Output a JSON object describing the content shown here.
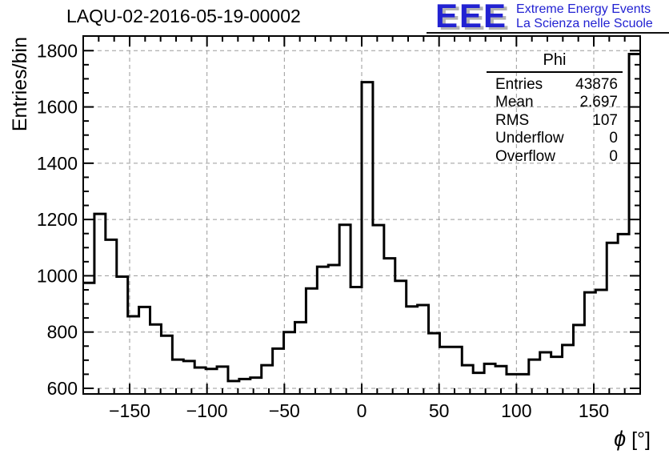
{
  "title": "LAQU-02-2016-05-19-00002",
  "logo": {
    "letters": "EEE",
    "line1": "Extreme Energy Events",
    "line2": "La Scienza nelle Scuole",
    "color": "#2222d2",
    "shadow_color": "#b3b3b3"
  },
  "stats": {
    "title": "Phi",
    "rows": [
      {
        "label": "Entries",
        "value": "43876"
      },
      {
        "label": "Mean",
        "value": "2.697"
      },
      {
        "label": "RMS",
        "value": "107"
      },
      {
        "label": "Underflow",
        "value": "0"
      },
      {
        "label": "Overflow",
        "value": "0"
      }
    ]
  },
  "chart_data": {
    "type": "bar",
    "subtype": "step-histogram",
    "title": "LAQU-02-2016-05-19-00002",
    "xlabel": "ϕ [°]",
    "xlabel_symbol": "ϕ",
    "xlabel_unit": " [°]",
    "ylabel": "Entries/bin",
    "x_range": [
      -180,
      180
    ],
    "bin_width_deg": 7.2,
    "n_bins": 50,
    "values": [
      975,
      1220,
      1128,
      997,
      856,
      889,
      827,
      787,
      702,
      697,
      674,
      669,
      677,
      626,
      633,
      638,
      682,
      741,
      800,
      835,
      955,
      1032,
      1038,
      1181,
      960,
      1688,
      1180,
      1062,
      982,
      891,
      896,
      796,
      747,
      747,
      682,
      655,
      687,
      679,
      650,
      650,
      702,
      728,
      712,
      754,
      825,
      941,
      950,
      1117,
      1148,
      1788
    ],
    "x_ticks_major": [
      -150,
      -100,
      -50,
      0,
      50,
      100,
      150
    ],
    "x_tick_labels": [
      "−150",
      "−100",
      "−50",
      "0",
      "50",
      "100",
      "150"
    ],
    "x_minor_step": 10,
    "y_ticks_major": [
      600,
      800,
      1000,
      1200,
      1400,
      1600,
      1800
    ],
    "y_minor_step": 50,
    "y_axis_range": [
      580,
      1852
    ],
    "grid": true,
    "legend_position": "none",
    "line_color": "#000000",
    "grid_color": "#9a9a9a",
    "frame_color": "#000000"
  }
}
